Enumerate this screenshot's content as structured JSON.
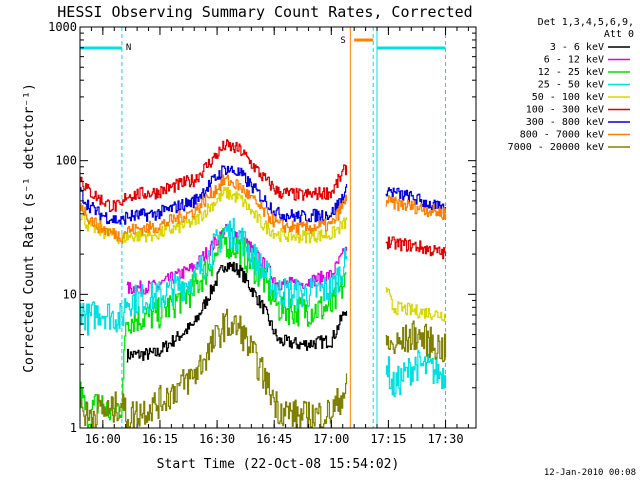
{
  "chart_data": {
    "type": "line",
    "title": "HESSI Observing Summary Count Rates, Corrected",
    "xlabel": "Start Time (22-Oct-08 15:54:02)",
    "ylabel": "Corrected Count Rate (s⁻¹ detector⁻¹)",
    "yscale": "log",
    "ylim": [
      1,
      1000
    ],
    "xlim_minutes": [
      -1.5,
      37.5
    ],
    "x_ticks": [
      {
        "minute": 6,
        "label": "16:00"
      },
      {
        "minute": 21,
        "label": "16:15"
      },
      {
        "minute": 36,
        "label": "16:30"
      },
      {
        "minute": 51,
        "label": "16:45"
      },
      {
        "minute": 66,
        "label": "17:00"
      },
      {
        "minute": 81,
        "label": "17:15"
      },
      {
        "minute": 96,
        "label": "17:30"
      }
    ],
    "y_ticks": [
      {
        "value": 1,
        "label": "1"
      },
      {
        "value": 10,
        "label": "10"
      },
      {
        "value": 100,
        "label": "100"
      },
      {
        "value": 1000,
        "label": "1000"
      }
    ],
    "legend": {
      "header": [
        "Det 1,3,4,5,6,9,",
        "Att 0"
      ],
      "position": "right"
    },
    "series": [
      {
        "name": "3 - 6 keV",
        "color": "#000000",
        "x": [
          0,
          11,
          12,
          20,
          30,
          38,
          42,
          48,
          52,
          58,
          66,
          70,
          72,
          74,
          76,
          80,
          82,
          88,
          96
        ],
        "y": [
          null,
          null,
          3.5,
          3.6,
          6,
          17,
          15,
          8,
          4.5,
          4.2,
          4.5,
          8,
          null,
          null,
          null,
          null,
          null,
          null,
          null
        ]
      },
      {
        "name": "6 - 12 keV",
        "color": "#e000e0",
        "x": [
          0,
          11,
          12,
          20,
          30,
          38,
          42,
          48,
          52,
          58,
          66,
          70,
          72,
          74,
          76,
          80,
          82,
          88,
          96
        ],
        "y": [
          null,
          null,
          11,
          11.5,
          16,
          30,
          28,
          17,
          12,
          12,
          14,
          22,
          null,
          null,
          null,
          null,
          null,
          null,
          null
        ]
      },
      {
        "name": "12 - 25 keV",
        "color": "#00e000",
        "x": [
          0,
          2,
          5,
          8,
          11,
          12,
          20,
          30,
          38,
          42,
          48,
          52,
          58,
          66,
          70,
          72,
          74,
          76,
          80,
          82,
          88,
          96
        ],
        "y": [
          1.8,
          1.2,
          1.6,
          1.3,
          1.5,
          6.5,
          7,
          11,
          25,
          22,
          13,
          8,
          7.5,
          8,
          13,
          null,
          null,
          null,
          null,
          null,
          null,
          null
        ]
      },
      {
        "name": "25 - 50 keV",
        "color": "#00e0e0",
        "x": [
          0,
          2,
          5,
          8,
          11,
          12,
          20,
          30,
          38,
          42,
          48,
          52,
          58,
          66,
          70,
          72,
          74,
          76,
          80,
          82,
          88,
          96
        ],
        "y": [
          8,
          6.5,
          7.5,
          7,
          6.5,
          9,
          9.5,
          13,
          30,
          27,
          15,
          10.5,
          10,
          11,
          18,
          null,
          null,
          null,
          3.5,
          2,
          3,
          2.5
        ]
      },
      {
        "name": "50 - 100 keV",
        "color": "#d8d800",
        "x": [
          0,
          2,
          5,
          8,
          11,
          12,
          20,
          30,
          38,
          42,
          48,
          52,
          58,
          66,
          70,
          72,
          74,
          76,
          80,
          82,
          88,
          96
        ],
        "y": [
          40,
          33,
          30,
          28,
          26,
          27,
          28,
          35,
          58,
          52,
          33,
          28,
          27,
          28,
          35,
          null,
          null,
          null,
          12,
          8,
          7.5,
          7
        ]
      },
      {
        "name": "100 - 300 keV",
        "color": "#e00000",
        "x": [
          0,
          2,
          5,
          8,
          11,
          12,
          20,
          30,
          38,
          42,
          48,
          52,
          58,
          66,
          70,
          72,
          74,
          76,
          80,
          82,
          88,
          96
        ],
        "y": [
          75,
          60,
          52,
          46,
          45,
          55,
          58,
          72,
          130,
          120,
          75,
          58,
          55,
          58,
          90,
          null,
          null,
          null,
          25,
          24,
          23,
          20
        ]
      },
      {
        "name": "300 - 800 keV",
        "color": "#0000e0",
        "x": [
          0,
          2,
          5,
          8,
          11,
          12,
          20,
          30,
          38,
          42,
          48,
          52,
          58,
          66,
          70,
          72,
          74,
          76,
          80,
          82,
          88,
          96
        ],
        "y": [
          58,
          47,
          40,
          37,
          35,
          38,
          40,
          50,
          88,
          80,
          52,
          40,
          38,
          40,
          60,
          null,
          null,
          null,
          62,
          58,
          52,
          42
        ]
      },
      {
        "name": "800 - 7000 keV",
        "color": "#ff8000",
        "x": [
          0,
          2,
          5,
          8,
          11,
          12,
          20,
          30,
          38,
          42,
          48,
          52,
          58,
          66,
          70,
          72,
          74,
          76,
          80,
          82,
          88,
          96
        ],
        "y": [
          48,
          38,
          32,
          29,
          27,
          30,
          32,
          42,
          72,
          64,
          42,
          33,
          31,
          33,
          52,
          null,
          null,
          null,
          50,
          48,
          45,
          40
        ]
      },
      {
        "name": "7000 - 20000 keV",
        "color": "#808000",
        "x": [
          0,
          2,
          5,
          8,
          11,
          12,
          20,
          30,
          38,
          42,
          48,
          52,
          58,
          66,
          70,
          72,
          74,
          76,
          80,
          82,
          88,
          96
        ],
        "y": [
          1.5,
          1.2,
          1.4,
          1.3,
          1.6,
          1.2,
          1.5,
          2.5,
          6,
          5.5,
          2.5,
          1.4,
          1.2,
          1.3,
          2,
          null,
          null,
          null,
          4.5,
          4,
          5,
          3.8
        ]
      }
    ],
    "annotations": [
      {
        "label": "N",
        "color": "#00e0e0"
      },
      {
        "label": "S",
        "color": "#ff8000"
      }
    ]
  },
  "footer": {
    "date": "12-Jan-2010 00:08"
  }
}
